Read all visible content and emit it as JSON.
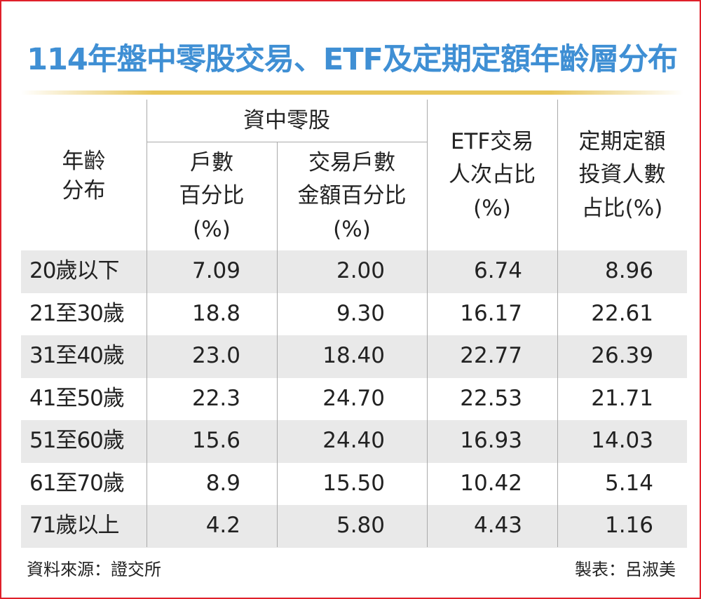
{
  "title": "114年盤中零股交易、ETF及定期定額年齡層分布",
  "table": {
    "header": {
      "age": [
        "年齡",
        "分布"
      ],
      "group": "資中零股",
      "columns": [
        [
          "戶數",
          "百分比",
          "(%)"
        ],
        [
          "交易戶數",
          "金額百分比",
          "(%)"
        ],
        [
          "ETF交易",
          "人次占比",
          "(%)"
        ],
        [
          "定期定額",
          "投資人數",
          "占比(%)"
        ]
      ]
    },
    "rows": [
      [
        "20歲以下",
        "7.09",
        "2.00",
        "6.74",
        "8.96"
      ],
      [
        "21至30歲",
        "18.8",
        "9.30",
        "16.17",
        "22.61"
      ],
      [
        "31至40歲",
        "23.0",
        "18.40",
        "22.77",
        "26.39"
      ],
      [
        "41至50歲",
        "22.3",
        "24.70",
        "22.53",
        "21.71"
      ],
      [
        "51至60歲",
        "15.6",
        "24.40",
        "16.93",
        "14.03"
      ],
      [
        "61至70歲",
        "8.9",
        "15.50",
        "10.42",
        "5.14"
      ],
      [
        "71歲以上",
        "4.2",
        "5.80",
        "4.43",
        "1.16"
      ]
    ]
  },
  "footer": {
    "source": "資料來源：證交所",
    "author": "製表：呂淑美"
  }
}
